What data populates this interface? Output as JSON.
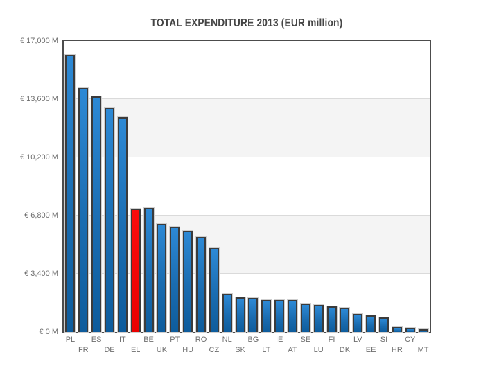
{
  "chart_data": {
    "type": "bar",
    "title": "TOTAL EXPENDITURE 2013 (EUR million)",
    "categories": [
      "PL",
      "FR",
      "ES",
      "DE",
      "IT",
      "EL",
      "BE",
      "UK",
      "PT",
      "HU",
      "RO",
      "CZ",
      "NL",
      "SK",
      "BG",
      "LT",
      "IE",
      "AT",
      "SE",
      "LU",
      "FI",
      "DK",
      "LV",
      "EE",
      "SI",
      "HR",
      "CY",
      "MT"
    ],
    "values": [
      16179,
      14239,
      13752,
      13056,
      12554,
      7214,
      7234,
      6308,
      6160,
      5910,
      5561,
      4893,
      2227,
      2027,
      1977,
      1882,
      1880,
      1863,
      1661,
      1598,
      1497,
      1433,
      1062,
      969,
      849,
      292,
      240,
      161
    ],
    "unit": "EUR million",
    "xlabel": "",
    "ylabel": "",
    "ylim": [
      0,
      17000
    ],
    "yticks": [
      0,
      3400,
      6800,
      10200,
      13600,
      17000
    ],
    "ytick_labels": [
      "€ 0 M",
      "€ 3,400 M",
      "€ 6,800 M",
      "€ 10,200 M",
      "€ 13,600 M",
      "€ 17,000 M"
    ],
    "grid": true,
    "alternating_bands": true,
    "gray_band_ranges": [
      [
        3400,
        6800
      ],
      [
        10200,
        13600
      ]
    ],
    "legend_position": "none",
    "highlight": {
      "category": "EL",
      "index": 5,
      "color": "#f40000"
    },
    "colors": {
      "bar": "#2280c6",
      "bar_gradient_top": "#2d89d5",
      "bar_gradient_bottom": "#0e5c9c",
      "highlight_bar": "#f40000",
      "bar_border": "#3b3b3b",
      "plot_border": "#4c4c4c",
      "band": "#f4f4f4",
      "gridline": "#dadada",
      "axis_text": "#6e6e6e",
      "title_text": "#454545",
      "background": "#ffffff"
    }
  }
}
